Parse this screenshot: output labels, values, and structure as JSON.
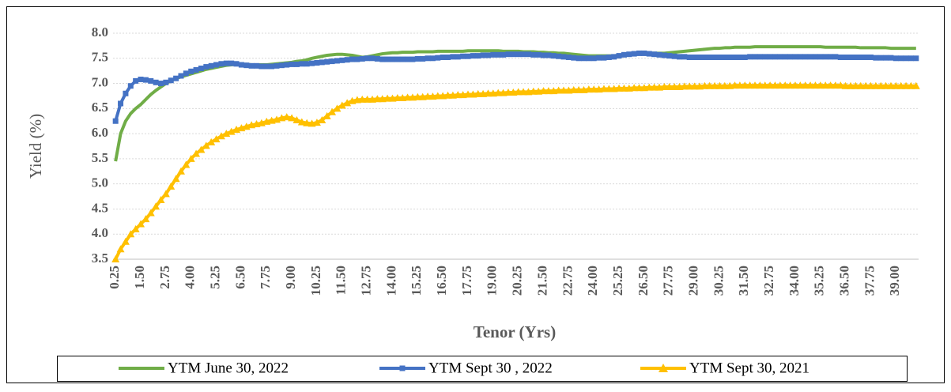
{
  "chart_data": {
    "type": "line",
    "y_label": "Yield (%)",
    "x_label": "Tenor (Yrs)",
    "ylim": [
      3.5,
      8.0
    ],
    "yticks": [
      3.5,
      {
        "value": 4,
        "label": "4.0"
      },
      4.5,
      {
        "value": 5,
        "label": "5.0"
      },
      5.5,
      {
        "value": 6,
        "label": "6.0"
      },
      6.5,
      {
        "value": 7,
        "label": "7.0"
      },
      7.5,
      {
        "value": 8,
        "label": "8.0"
      }
    ],
    "grid": true,
    "legend": "bottom",
    "categories": [
      "0.25",
      null,
      null,
      null,
      null,
      "1.50",
      null,
      null,
      null,
      null,
      "2.75",
      null,
      null,
      null,
      null,
      "4.00",
      null,
      null,
      null,
      null,
      "5.25",
      null,
      null,
      null,
      null,
      "6.50",
      null,
      null,
      null,
      null,
      "7.75",
      null,
      null,
      null,
      null,
      "9.00",
      null,
      null,
      null,
      null,
      "10.25",
      null,
      null,
      null,
      null,
      "11.50",
      null,
      null,
      null,
      null,
      "12.75",
      null,
      null,
      null,
      null,
      "14.00",
      null,
      null,
      null,
      null,
      "15.25",
      null,
      null,
      null,
      null,
      "16.50",
      null,
      null,
      null,
      null,
      "17.75",
      null,
      null,
      null,
      null,
      "19.00",
      null,
      null,
      null,
      null,
      "20.25",
      null,
      null,
      null,
      null,
      "21.50",
      null,
      null,
      null,
      null,
      "22.75",
      null,
      null,
      null,
      null,
      "24.00",
      null,
      null,
      null,
      null,
      "25.25",
      null,
      null,
      null,
      null,
      "26.50",
      null,
      null,
      null,
      null,
      "27.75",
      null,
      null,
      null,
      null,
      "29.00",
      null,
      null,
      null,
      null,
      "30.25",
      null,
      null,
      null,
      null,
      "31.50",
      null,
      null,
      null,
      null,
      "32.75",
      null,
      null,
      null,
      null,
      "34.00",
      null,
      null,
      null,
      null,
      "35.25",
      null,
      null,
      null,
      null,
      "36.50",
      null,
      null,
      null,
      null,
      "37.75",
      null,
      null,
      null,
      null,
      "39.00",
      null,
      null,
      null,
      null
    ],
    "series": [
      {
        "name": "YTM June 30, 2022",
        "color": "#70ad47",
        "marker": "none",
        "values": [
          5.45,
          6.0,
          6.25,
          6.4,
          6.5,
          6.58,
          6.68,
          6.78,
          6.86,
          6.93,
          7.0,
          7.05,
          7.1,
          7.13,
          7.16,
          7.19,
          7.22,
          7.25,
          7.28,
          7.3,
          7.32,
          7.34,
          7.36,
          7.37,
          7.38,
          7.38,
          7.38,
          7.37,
          7.37,
          7.37,
          7.37,
          7.38,
          7.39,
          7.4,
          7.41,
          7.42,
          7.44,
          7.45,
          7.47,
          7.5,
          7.52,
          7.54,
          7.56,
          7.57,
          7.58,
          7.58,
          7.57,
          7.56,
          7.54,
          7.52,
          7.53,
          7.55,
          7.57,
          7.59,
          7.6,
          7.61,
          7.61,
          7.62,
          7.62,
          7.62,
          7.63,
          7.63,
          7.63,
          7.63,
          7.64,
          7.64,
          7.64,
          7.64,
          7.64,
          7.64,
          7.65,
          7.65,
          7.65,
          7.65,
          7.65,
          7.65,
          7.65,
          7.64,
          7.64,
          7.64,
          7.64,
          7.63,
          7.63,
          7.63,
          7.62,
          7.62,
          7.61,
          7.61,
          7.6,
          7.6,
          7.59,
          7.58,
          7.57,
          7.56,
          7.55,
          7.55,
          7.55,
          7.55,
          7.55,
          7.55,
          7.56,
          7.57,
          7.58,
          7.59,
          7.6,
          7.6,
          7.6,
          7.6,
          7.6,
          7.6,
          7.61,
          7.62,
          7.63,
          7.64,
          7.65,
          7.66,
          7.67,
          7.68,
          7.69,
          7.7,
          7.7,
          7.71,
          7.71,
          7.72,
          7.72,
          7.72,
          7.72,
          7.73,
          7.73,
          7.73,
          7.73,
          7.73,
          7.73,
          7.73,
          7.73,
          7.73,
          7.73,
          7.73,
          7.73,
          7.73,
          7.73,
          7.72,
          7.72,
          7.72,
          7.72,
          7.72,
          7.72,
          7.72,
          7.71,
          7.71,
          7.71,
          7.71,
          7.71,
          7.71,
          7.7,
          7.7,
          7.7,
          7.7,
          7.7,
          7.7
        ]
      },
      {
        "name": "YTM Sept 30 , 2022",
        "color": "#4472c4",
        "marker": "square",
        "values": [
          6.25,
          6.6,
          6.8,
          6.95,
          7.05,
          7.08,
          7.07,
          7.05,
          7.02,
          7.0,
          7.02,
          7.06,
          7.1,
          7.15,
          7.2,
          7.24,
          7.27,
          7.3,
          7.33,
          7.35,
          7.37,
          7.39,
          7.4,
          7.4,
          7.39,
          7.37,
          7.36,
          7.35,
          7.35,
          7.34,
          7.34,
          7.34,
          7.35,
          7.36,
          7.37,
          7.38,
          7.38,
          7.39,
          7.39,
          7.4,
          7.41,
          7.42,
          7.43,
          7.44,
          7.45,
          7.46,
          7.47,
          7.48,
          7.48,
          7.49,
          7.5,
          7.5,
          7.49,
          7.48,
          7.48,
          7.48,
          7.48,
          7.48,
          7.48,
          7.48,
          7.49,
          7.49,
          7.5,
          7.5,
          7.51,
          7.52,
          7.52,
          7.53,
          7.53,
          7.54,
          7.54,
          7.55,
          7.55,
          7.56,
          7.56,
          7.57,
          7.57,
          7.57,
          7.58,
          7.58,
          7.58,
          7.58,
          7.58,
          7.57,
          7.57,
          7.56,
          7.56,
          7.55,
          7.54,
          7.53,
          7.52,
          7.51,
          7.5,
          7.5,
          7.5,
          7.5,
          7.51,
          7.51,
          7.52,
          7.53,
          7.55,
          7.57,
          7.58,
          7.59,
          7.6,
          7.6,
          7.59,
          7.58,
          7.57,
          7.56,
          7.55,
          7.54,
          7.53,
          7.53,
          7.52,
          7.52,
          7.52,
          7.52,
          7.52,
          7.52,
          7.52,
          7.52,
          7.52,
          7.52,
          7.52,
          7.52,
          7.53,
          7.53,
          7.53,
          7.53,
          7.53,
          7.53,
          7.53,
          7.53,
          7.53,
          7.53,
          7.53,
          7.53,
          7.53,
          7.53,
          7.53,
          7.53,
          7.53,
          7.53,
          7.52,
          7.52,
          7.52,
          7.52,
          7.52,
          7.52,
          7.52,
          7.51,
          7.51,
          7.51,
          7.51,
          7.5,
          7.5,
          7.5,
          7.5,
          7.5
        ]
      },
      {
        "name": "YTM  Sept 30, 2021",
        "color": "#ffc000",
        "marker": "triangle",
        "values": [
          3.5,
          3.7,
          3.85,
          4.0,
          4.1,
          4.2,
          4.3,
          4.42,
          4.55,
          4.68,
          4.8,
          4.95,
          5.1,
          5.25,
          5.38,
          5.5,
          5.6,
          5.68,
          5.76,
          5.83,
          5.89,
          5.95,
          6.0,
          6.04,
          6.08,
          6.11,
          6.14,
          6.17,
          6.19,
          6.21,
          6.24,
          6.26,
          6.28,
          6.31,
          6.33,
          6.31,
          6.27,
          6.23,
          6.21,
          6.2,
          6.22,
          6.27,
          6.35,
          6.43,
          6.5,
          6.56,
          6.61,
          6.65,
          6.67,
          6.68,
          6.68,
          6.68,
          6.69,
          6.69,
          6.7,
          6.7,
          6.71,
          6.71,
          6.72,
          6.72,
          6.73,
          6.73,
          6.74,
          6.74,
          6.75,
          6.75,
          6.76,
          6.76,
          6.77,
          6.77,
          6.78,
          6.78,
          6.79,
          6.79,
          6.8,
          6.8,
          6.81,
          6.81,
          6.82,
          6.82,
          6.83,
          6.83,
          6.83,
          6.84,
          6.84,
          6.85,
          6.85,
          6.85,
          6.86,
          6.86,
          6.86,
          6.87,
          6.87,
          6.87,
          6.88,
          6.88,
          6.88,
          6.89,
          6.89,
          6.89,
          6.9,
          6.9,
          6.9,
          6.91,
          6.91,
          6.91,
          6.92,
          6.92,
          6.92,
          6.93,
          6.93,
          6.93,
          6.93,
          6.94,
          6.94,
          6.94,
          6.94,
          6.95,
          6.95,
          6.95,
          6.95,
          6.95,
          6.95,
          6.96,
          6.96,
          6.96,
          6.96,
          6.96,
          6.96,
          6.96,
          6.96,
          6.96,
          6.96,
          6.96,
          6.96,
          6.96,
          6.96,
          6.96,
          6.96,
          6.96,
          6.96,
          6.96,
          6.96,
          6.96,
          6.96,
          6.95,
          6.95,
          6.95,
          6.95,
          6.95,
          6.95,
          6.95,
          6.95,
          6.95,
          6.95,
          6.95,
          6.95,
          6.95,
          6.95,
          6.95
        ]
      }
    ]
  }
}
